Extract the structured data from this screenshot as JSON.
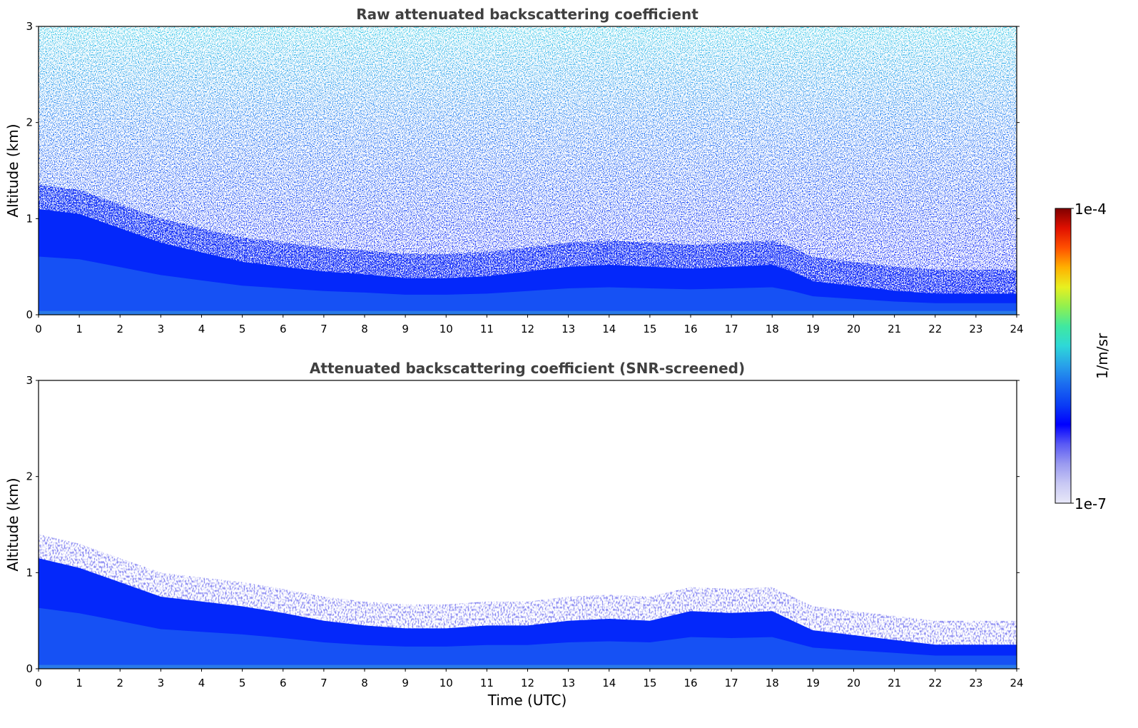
{
  "chart_data": [
    {
      "type": "heatmap",
      "title": "Raw attenuated backscattering coefficient",
      "xlabel": "",
      "ylabel": "Altitude (km)",
      "xlim": [
        0,
        24
      ],
      "ylim": [
        0,
        3
      ],
      "x_ticks": [
        "0",
        "1",
        "2",
        "3",
        "4",
        "5",
        "6",
        "7",
        "8",
        "9",
        "10",
        "11",
        "12",
        "13",
        "14",
        "15",
        "16",
        "17",
        "18",
        "19",
        "20",
        "21",
        "22",
        "23",
        "24"
      ],
      "y_ticks": [
        "0",
        "1",
        "2",
        "3"
      ],
      "screened": false,
      "boundary_layer_top_km": {
        "x": [
          0,
          1,
          2,
          3,
          4,
          5,
          6,
          7,
          8,
          9,
          10,
          11,
          12,
          13,
          14,
          15,
          16,
          17,
          18,
          18.5,
          19,
          20,
          21,
          22,
          23,
          24
        ],
        "y": [
          1.1,
          1.05,
          0.9,
          0.75,
          0.65,
          0.55,
          0.5,
          0.45,
          0.42,
          0.38,
          0.38,
          0.4,
          0.45,
          0.5,
          0.52,
          0.5,
          0.48,
          0.5,
          0.52,
          0.45,
          0.35,
          0.3,
          0.25,
          0.22,
          0.22,
          0.22
        ]
      }
    },
    {
      "type": "heatmap",
      "title": "Attenuated backscattering coefficient (SNR-screened)",
      "xlabel": "Time (UTC)",
      "ylabel": "Altitude (km)",
      "xlim": [
        0,
        24
      ],
      "ylim": [
        0,
        3
      ],
      "x_ticks": [
        "0",
        "1",
        "2",
        "3",
        "4",
        "5",
        "6",
        "7",
        "8",
        "9",
        "10",
        "11",
        "12",
        "13",
        "14",
        "15",
        "16",
        "17",
        "18",
        "19",
        "20",
        "21",
        "22",
        "23",
        "24"
      ],
      "y_ticks": [
        "0",
        "1",
        "2",
        "3"
      ],
      "screened": true,
      "boundary_layer_top_km": {
        "x": [
          0,
          1,
          2,
          3,
          4,
          5,
          6,
          7,
          8,
          9,
          10,
          11,
          12,
          13,
          14,
          15,
          16,
          17,
          18,
          18.5,
          19,
          20,
          21,
          22,
          23,
          24
        ],
        "y": [
          1.15,
          1.05,
          0.9,
          0.75,
          0.7,
          0.65,
          0.58,
          0.5,
          0.45,
          0.42,
          0.42,
          0.45,
          0.45,
          0.5,
          0.52,
          0.5,
          0.6,
          0.58,
          0.6,
          0.5,
          0.4,
          0.35,
          0.3,
          0.25,
          0.25,
          0.25
        ]
      }
    }
  ],
  "colorbar": {
    "label": "1/m/sr",
    "max_label": "1e-4",
    "min_label": "1e-7",
    "range": [
      1e-07,
      0.0001
    ],
    "scale": "log",
    "colormap": [
      "#e8e8f8",
      "#c8c8f4",
      "#9a9af0",
      "#5a5af4",
      "#0000ff",
      "#0a3cf4",
      "#1a6af0",
      "#28a0ea",
      "#2ed8d8",
      "#40e8a0",
      "#90f050",
      "#e8f020",
      "#ffb000",
      "#ff5000",
      "#e01000",
      "#800000"
    ]
  }
}
